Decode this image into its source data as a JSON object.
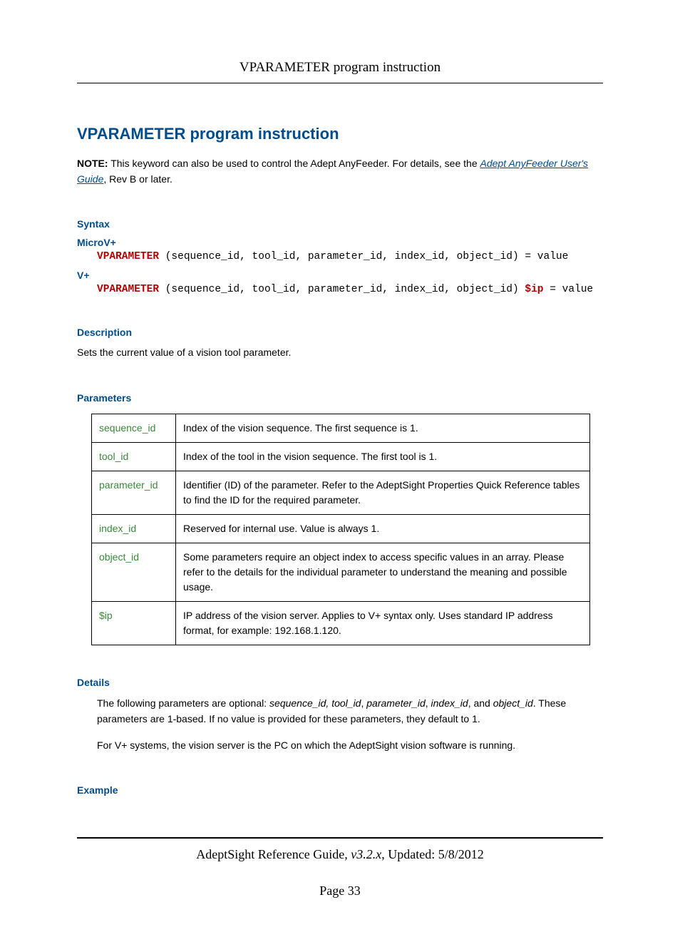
{
  "header": {
    "running_title": "VPARAMETER program instruction"
  },
  "title": "VPARAMETER program instruction",
  "note": {
    "label": "NOTE:",
    "pre_text": " This keyword can also be used to control the Adept AnyFeeder. For details, see the ",
    "link_text": "Adept AnyFeeder User's Guide",
    "post_text": ", Rev B or later."
  },
  "syntax": {
    "heading": "Syntax",
    "micro": {
      "label": "MicroV+",
      "keyword": "VPARAMETER",
      "args": " (sequence_id, tool_id, parameter_id, index_id, object_id) = value"
    },
    "vplus": {
      "label": "V+",
      "keyword": "VPARAMETER",
      "args_pre": " (sequence_id, tool_id, parameter_id, index_id, object_id) ",
      "ip_kw": "$ip",
      "args_post": " = value"
    }
  },
  "description": {
    "heading": "Description",
    "text": "Sets the current value of a vision tool parameter."
  },
  "parameters": {
    "heading": "Parameters",
    "rows": [
      {
        "name": "sequence_id",
        "desc": "Index of the vision sequence. The first sequence is 1."
      },
      {
        "name": "tool_id",
        "desc": "Index of the tool in the vision sequence. The first tool is 1."
      },
      {
        "name": "parameter_id",
        "desc": "Identifier (ID) of the parameter. Refer to the AdeptSight Properties Quick Reference tables to find the ID for the required parameter."
      },
      {
        "name": "index_id",
        "desc": "Reserved for internal use. Value is always 1."
      },
      {
        "name": "object_id",
        "desc": "Some parameters require an object index to access specific values in an array. Please refer to the details for the individual parameter to understand the meaning and possible usage."
      },
      {
        "name": "$ip",
        "desc": "IP address of the vision server. Applies to V+ syntax only. Uses standard IP address format, for example: 192.168.1.120."
      }
    ]
  },
  "details": {
    "heading": "Details",
    "para1_pre": "The following parameters are optional: ",
    "para1_em": "sequence_id, tool_id",
    "para1_mid1": ", ",
    "para1_em2": "parameter_id",
    "para1_mid2": ", ",
    "para1_em3": "index_id",
    "para1_mid3": ", and ",
    "para1_em4": "object_id",
    "para1_post": ". These parameters are 1-based. If no value is provided for these parameters, they default to 1.",
    "para2": "For V+ systems, the vision server is the PC on which the AdeptSight vision software is running."
  },
  "example": {
    "heading": "Example"
  },
  "footer": {
    "doc_title": "AdeptSight Reference Guide",
    "version": ", v3.2.x",
    "updated": ", Updated: 5/8/2012",
    "page_label": "Page 33"
  },
  "colors": {
    "heading": "#004c8c",
    "keyword": "#b30000",
    "param_name": "#3a8a3a",
    "text": "#000000",
    "background": "#ffffff"
  }
}
